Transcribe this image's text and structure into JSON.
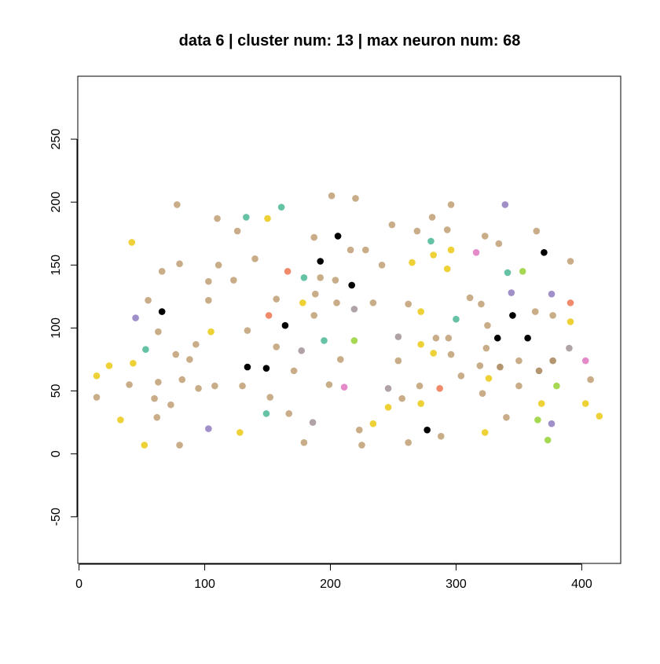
{
  "chart_data": {
    "type": "scatter",
    "title": "data 6 | cluster num: 13 | max neuron num: 68",
    "xlabel": "",
    "ylabel": "",
    "xlim": [
      -1,
      431
    ],
    "ylim": [
      -87,
      300
    ],
    "xticks": [
      0,
      100,
      200,
      300,
      400
    ],
    "xtick_labels": [
      "0",
      "100",
      "200",
      "300",
      "400"
    ],
    "yticks": [
      -50,
      0,
      50,
      100,
      150,
      200,
      250
    ],
    "ytick_labels": [
      "-50",
      "0",
      "50",
      "100",
      "150",
      "200",
      "250"
    ],
    "colors": {
      "tan": "#C8AD88",
      "brown": "#B39670",
      "yellow": "#EDD136",
      "green": "#66C2A5",
      "lime": "#A6D854",
      "orange": "#F08A6A",
      "purple": "#A08FC8",
      "pink": "#E58AC8",
      "gray": "#B0A3A6",
      "black": "#000000"
    },
    "points": [
      {
        "x": 14,
        "y": 45,
        "c": "tan"
      },
      {
        "x": 14,
        "y": 62,
        "c": "yellow"
      },
      {
        "x": 24,
        "y": 70,
        "c": "yellow"
      },
      {
        "x": 33,
        "y": 27,
        "c": "yellow"
      },
      {
        "x": 40,
        "y": 55,
        "c": "tan"
      },
      {
        "x": 42,
        "y": 168,
        "c": "yellow"
      },
      {
        "x": 43,
        "y": 72,
        "c": "yellow"
      },
      {
        "x": 45,
        "y": 108,
        "c": "purple"
      },
      {
        "x": 52,
        "y": 7,
        "c": "yellow"
      },
      {
        "x": 53,
        "y": 83,
        "c": "green"
      },
      {
        "x": 55,
        "y": 122,
        "c": "tan"
      },
      {
        "x": 60,
        "y": 44,
        "c": "tan"
      },
      {
        "x": 62,
        "y": 29,
        "c": "tan"
      },
      {
        "x": 63,
        "y": 57,
        "c": "tan"
      },
      {
        "x": 63,
        "y": 97,
        "c": "tan"
      },
      {
        "x": 66,
        "y": 145,
        "c": "tan"
      },
      {
        "x": 66,
        "y": 113,
        "c": "black"
      },
      {
        "x": 73,
        "y": 39,
        "c": "tan"
      },
      {
        "x": 77,
        "y": 79,
        "c": "tan"
      },
      {
        "x": 78,
        "y": 198,
        "c": "tan"
      },
      {
        "x": 80,
        "y": 151,
        "c": "tan"
      },
      {
        "x": 80,
        "y": 7,
        "c": "tan"
      },
      {
        "x": 82,
        "y": 59,
        "c": "tan"
      },
      {
        "x": 88,
        "y": 75,
        "c": "tan"
      },
      {
        "x": 93,
        "y": 87,
        "c": "tan"
      },
      {
        "x": 95,
        "y": 52,
        "c": "tan"
      },
      {
        "x": 103,
        "y": 20,
        "c": "purple"
      },
      {
        "x": 103,
        "y": 122,
        "c": "tan"
      },
      {
        "x": 103,
        "y": 137,
        "c": "tan"
      },
      {
        "x": 105,
        "y": 97,
        "c": "yellow"
      },
      {
        "x": 108,
        "y": 54,
        "c": "tan"
      },
      {
        "x": 110,
        "y": 187,
        "c": "tan"
      },
      {
        "x": 111,
        "y": 150,
        "c": "tan"
      },
      {
        "x": 123,
        "y": 138,
        "c": "tan"
      },
      {
        "x": 126,
        "y": 177,
        "c": "tan"
      },
      {
        "x": 128,
        "y": 17,
        "c": "yellow"
      },
      {
        "x": 130,
        "y": 54,
        "c": "tan"
      },
      {
        "x": 133,
        "y": 188,
        "c": "green"
      },
      {
        "x": 134,
        "y": 98,
        "c": "tan"
      },
      {
        "x": 134,
        "y": 69,
        "c": "black"
      },
      {
        "x": 140,
        "y": 155,
        "c": "tan"
      },
      {
        "x": 149,
        "y": 32,
        "c": "green"
      },
      {
        "x": 149,
        "y": 68,
        "c": "black"
      },
      {
        "x": 150,
        "y": 187,
        "c": "yellow"
      },
      {
        "x": 151,
        "y": 110,
        "c": "orange"
      },
      {
        "x": 152,
        "y": 45,
        "c": "tan"
      },
      {
        "x": 157,
        "y": 123,
        "c": "tan"
      },
      {
        "x": 157,
        "y": 85,
        "c": "tan"
      },
      {
        "x": 161,
        "y": 196,
        "c": "green"
      },
      {
        "x": 164,
        "y": 102,
        "c": "black"
      },
      {
        "x": 166,
        "y": 145,
        "c": "orange"
      },
      {
        "x": 167,
        "y": 32,
        "c": "tan"
      },
      {
        "x": 171,
        "y": 66,
        "c": "tan"
      },
      {
        "x": 177,
        "y": 82,
        "c": "gray"
      },
      {
        "x": 178,
        "y": 120,
        "c": "yellow"
      },
      {
        "x": 179,
        "y": 140,
        "c": "green"
      },
      {
        "x": 179,
        "y": 9,
        "c": "tan"
      },
      {
        "x": 186,
        "y": 25,
        "c": "gray"
      },
      {
        "x": 187,
        "y": 172,
        "c": "tan"
      },
      {
        "x": 187,
        "y": 110,
        "c": "tan"
      },
      {
        "x": 188,
        "y": 127,
        "c": "tan"
      },
      {
        "x": 192,
        "y": 140,
        "c": "tan"
      },
      {
        "x": 192,
        "y": 153,
        "c": "black"
      },
      {
        "x": 195,
        "y": 90,
        "c": "green"
      },
      {
        "x": 199,
        "y": 55,
        "c": "tan"
      },
      {
        "x": 201,
        "y": 205,
        "c": "tan"
      },
      {
        "x": 204,
        "y": 138,
        "c": "tan"
      },
      {
        "x": 205,
        "y": 120,
        "c": "tan"
      },
      {
        "x": 206,
        "y": 173,
        "c": "black"
      },
      {
        "x": 208,
        "y": 75,
        "c": "tan"
      },
      {
        "x": 211,
        "y": 53,
        "c": "pink"
      },
      {
        "x": 216,
        "y": 162,
        "c": "tan"
      },
      {
        "x": 217,
        "y": 134,
        "c": "black"
      },
      {
        "x": 219,
        "y": 90,
        "c": "lime"
      },
      {
        "x": 219,
        "y": 115,
        "c": "gray"
      },
      {
        "x": 220,
        "y": 203,
        "c": "tan"
      },
      {
        "x": 223,
        "y": 19,
        "c": "tan"
      },
      {
        "x": 225,
        "y": 7,
        "c": "tan"
      },
      {
        "x": 228,
        "y": 162,
        "c": "tan"
      },
      {
        "x": 234,
        "y": 24,
        "c": "yellow"
      },
      {
        "x": 234,
        "y": 120,
        "c": "tan"
      },
      {
        "x": 241,
        "y": 150,
        "c": "tan"
      },
      {
        "x": 246,
        "y": 37,
        "c": "yellow"
      },
      {
        "x": 246,
        "y": 52,
        "c": "gray"
      },
      {
        "x": 249,
        "y": 182,
        "c": "tan"
      },
      {
        "x": 254,
        "y": 93,
        "c": "gray"
      },
      {
        "x": 254,
        "y": 74,
        "c": "tan"
      },
      {
        "x": 257,
        "y": 44,
        "c": "tan"
      },
      {
        "x": 262,
        "y": 119,
        "c": "tan"
      },
      {
        "x": 262,
        "y": 9,
        "c": "tan"
      },
      {
        "x": 265,
        "y": 152,
        "c": "yellow"
      },
      {
        "x": 269,
        "y": 177,
        "c": "tan"
      },
      {
        "x": 271,
        "y": 54,
        "c": "tan"
      },
      {
        "x": 272,
        "y": 87,
        "c": "yellow"
      },
      {
        "x": 272,
        "y": 113,
        "c": "yellow"
      },
      {
        "x": 272,
        "y": 40,
        "c": "yellow"
      },
      {
        "x": 277,
        "y": 19,
        "c": "black"
      },
      {
        "x": 280,
        "y": 169,
        "c": "green"
      },
      {
        "x": 281,
        "y": 188,
        "c": "tan"
      },
      {
        "x": 282,
        "y": 158,
        "c": "yellow"
      },
      {
        "x": 282,
        "y": 80,
        "c": "yellow"
      },
      {
        "x": 284,
        "y": 92,
        "c": "tan"
      },
      {
        "x": 287,
        "y": 52,
        "c": "orange"
      },
      {
        "x": 288,
        "y": 14,
        "c": "tan"
      },
      {
        "x": 293,
        "y": 178,
        "c": "tan"
      },
      {
        "x": 293,
        "y": 147,
        "c": "yellow"
      },
      {
        "x": 294,
        "y": 92,
        "c": "tan"
      },
      {
        "x": 296,
        "y": 198,
        "c": "tan"
      },
      {
        "x": 296,
        "y": 162,
        "c": "yellow"
      },
      {
        "x": 296,
        "y": 79,
        "c": "tan"
      },
      {
        "x": 300,
        "y": 107,
        "c": "green"
      },
      {
        "x": 304,
        "y": 62,
        "c": "tan"
      },
      {
        "x": 311,
        "y": 124,
        "c": "tan"
      },
      {
        "x": 316,
        "y": 160,
        "c": "pink"
      },
      {
        "x": 319,
        "y": 70,
        "c": "tan"
      },
      {
        "x": 320,
        "y": 119,
        "c": "tan"
      },
      {
        "x": 321,
        "y": 48,
        "c": "tan"
      },
      {
        "x": 323,
        "y": 173,
        "c": "tan"
      },
      {
        "x": 323,
        "y": 17,
        "c": "yellow"
      },
      {
        "x": 324,
        "y": 84,
        "c": "tan"
      },
      {
        "x": 325,
        "y": 102,
        "c": "tan"
      },
      {
        "x": 326,
        "y": 60,
        "c": "yellow"
      },
      {
        "x": 333,
        "y": 92,
        "c": "black"
      },
      {
        "x": 334,
        "y": 167,
        "c": "tan"
      },
      {
        "x": 335,
        "y": 69,
        "c": "brown"
      },
      {
        "x": 339,
        "y": 198,
        "c": "purple"
      },
      {
        "x": 340,
        "y": 29,
        "c": "tan"
      },
      {
        "x": 341,
        "y": 144,
        "c": "green"
      },
      {
        "x": 344,
        "y": 128,
        "c": "purple"
      },
      {
        "x": 345,
        "y": 110,
        "c": "black"
      },
      {
        "x": 350,
        "y": 74,
        "c": "tan"
      },
      {
        "x": 350,
        "y": 54,
        "c": "tan"
      },
      {
        "x": 353,
        "y": 145,
        "c": "lime"
      },
      {
        "x": 357,
        "y": 92,
        "c": "black"
      },
      {
        "x": 363,
        "y": 113,
        "c": "tan"
      },
      {
        "x": 364,
        "y": 177,
        "c": "tan"
      },
      {
        "x": 365,
        "y": 27,
        "c": "lime"
      },
      {
        "x": 366,
        "y": 66,
        "c": "brown"
      },
      {
        "x": 368,
        "y": 40,
        "c": "yellow"
      },
      {
        "x": 370,
        "y": 160,
        "c": "black"
      },
      {
        "x": 373,
        "y": 11,
        "c": "lime"
      },
      {
        "x": 376,
        "y": 127,
        "c": "purple"
      },
      {
        "x": 376,
        "y": 24,
        "c": "purple"
      },
      {
        "x": 377,
        "y": 110,
        "c": "tan"
      },
      {
        "x": 377,
        "y": 74,
        "c": "brown"
      },
      {
        "x": 380,
        "y": 54,
        "c": "lime"
      },
      {
        "x": 390,
        "y": 84,
        "c": "gray"
      },
      {
        "x": 391,
        "y": 153,
        "c": "tan"
      },
      {
        "x": 391,
        "y": 120,
        "c": "orange"
      },
      {
        "x": 391,
        "y": 105,
        "c": "yellow"
      },
      {
        "x": 403,
        "y": 74,
        "c": "pink"
      },
      {
        "x": 403,
        "y": 40,
        "c": "yellow"
      },
      {
        "x": 407,
        "y": 59,
        "c": "tan"
      },
      {
        "x": 414,
        "y": 30,
        "c": "yellow"
      }
    ]
  }
}
